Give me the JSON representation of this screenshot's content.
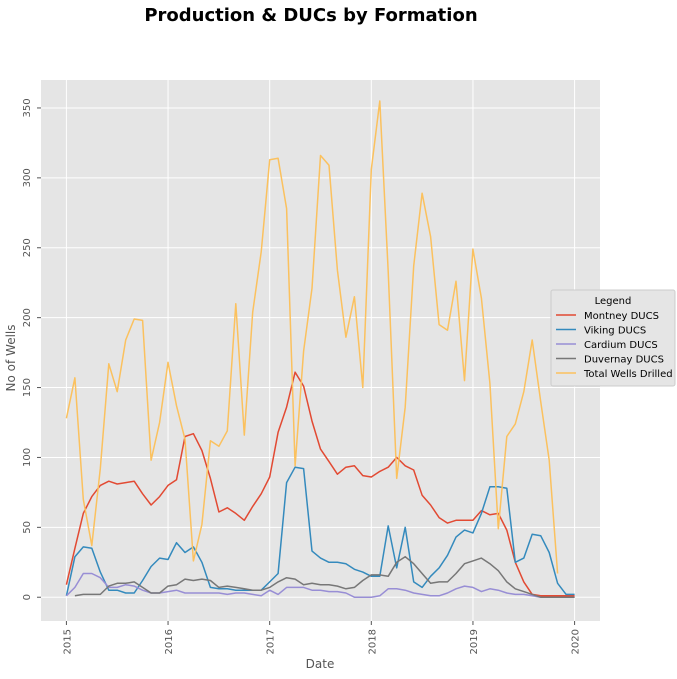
{
  "chart_data": {
    "type": "line",
    "title": "Production & DUCs by Formation",
    "xlabel": "Date",
    "ylabel": "No of Wells",
    "xlim": [
      2014.75,
      2020.25
    ],
    "ylim": [
      -17,
      370
    ],
    "x_ticks": [
      2015,
      2016,
      2017,
      2018,
      2019,
      2020
    ],
    "x_tick_labels": [
      "2015",
      "2016",
      "2017",
      "2018",
      "2019",
      "2020"
    ],
    "y_ticks": [
      0,
      50,
      100,
      150,
      200,
      250,
      300,
      350
    ],
    "y_tick_labels": [
      "0",
      "50",
      "100",
      "150",
      "200",
      "250",
      "300",
      "350"
    ],
    "grid": true,
    "legend": {
      "title": "Legend",
      "position": "right",
      "entries": [
        "Montney DUCS",
        "Viking DUCS",
        "Cardium DUCS",
        "Duvernay DUCS",
        "Total Wells Drilled"
      ]
    },
    "x_start": 2015.0,
    "x_step": 0.08333,
    "series": [
      {
        "name": "Montney DUCS",
        "color": "#E24A33",
        "values": [
          9,
          35,
          60,
          72,
          80,
          83,
          81,
          82,
          83,
          74,
          66,
          72,
          80,
          84,
          115,
          117,
          105,
          85,
          61,
          64,
          60,
          55,
          65,
          74,
          86,
          118,
          136,
          161,
          151,
          126,
          106,
          97,
          88,
          93,
          94,
          87,
          86,
          90,
          93,
          100,
          94,
          91,
          73,
          66,
          57,
          53,
          55,
          55,
          55,
          62,
          59,
          60,
          48,
          25,
          11,
          2,
          1,
          1,
          1,
          1,
          1
        ]
      },
      {
        "name": "Viking DUCS",
        "color": "#348ABD",
        "values": [
          1,
          29,
          36,
          35,
          18,
          5,
          5,
          3,
          3,
          12,
          22,
          28,
          27,
          39,
          32,
          36,
          25,
          7,
          6,
          6,
          5,
          5,
          5,
          5,
          11,
          17,
          82,
          93,
          92,
          33,
          28,
          25,
          25,
          24,
          20,
          18,
          15,
          15,
          51,
          21,
          50,
          11,
          7,
          15,
          21,
          30,
          43,
          48,
          46,
          60,
          79,
          79,
          78,
          25,
          28,
          45,
          44,
          32,
          10,
          2,
          2
        ]
      },
      {
        "name": "Cardium DUCS",
        "color": "#988ED5",
        "values": [
          1,
          7,
          17,
          17,
          14,
          7,
          7,
          9,
          8,
          5,
          3,
          3,
          4,
          5,
          3,
          3,
          3,
          3,
          3,
          2,
          3,
          3,
          2,
          1,
          5,
          2,
          7,
          7,
          7,
          5,
          5,
          4,
          4,
          3,
          0,
          0,
          0,
          1,
          6,
          6,
          5,
          3,
          2,
          1,
          1,
          3,
          6,
          8,
          7,
          4,
          6,
          5,
          3,
          2,
          2,
          1,
          0,
          0,
          0,
          0,
          0
        ]
      },
      {
        "name": "Duvernay DUCS",
        "color": "#777777",
        "values": [
          null,
          1,
          2,
          2,
          2,
          8,
          10,
          10,
          11,
          7,
          3,
          3,
          8,
          9,
          13,
          12,
          13,
          12,
          7,
          8,
          7,
          6,
          5,
          5,
          7,
          11,
          14,
          13,
          9,
          10,
          9,
          9,
          8,
          6,
          7,
          12,
          16,
          16,
          15,
          25,
          29,
          24,
          17,
          10,
          11,
          11,
          17,
          24,
          26,
          28,
          24,
          19,
          11,
          6,
          4,
          2,
          0,
          0,
          0,
          0,
          0
        ]
      },
      {
        "name": "Total Wells Drilled",
        "color": "#FBC15E",
        "values": [
          128,
          157,
          70,
          37,
          92,
          167,
          147,
          184,
          199,
          198,
          98,
          125,
          168,
          137,
          113,
          26,
          52,
          112,
          108,
          119,
          210,
          116,
          204,
          247,
          313,
          314,
          278,
          94,
          176,
          221,
          316,
          309,
          234,
          186,
          215,
          150,
          306,
          355,
          233,
          85,
          136,
          237,
          289,
          258,
          195,
          191,
          226,
          155,
          249,
          214,
          153,
          49,
          115,
          124,
          147,
          184,
          140,
          98,
          17,
          null,
          null
        ]
      }
    ]
  }
}
